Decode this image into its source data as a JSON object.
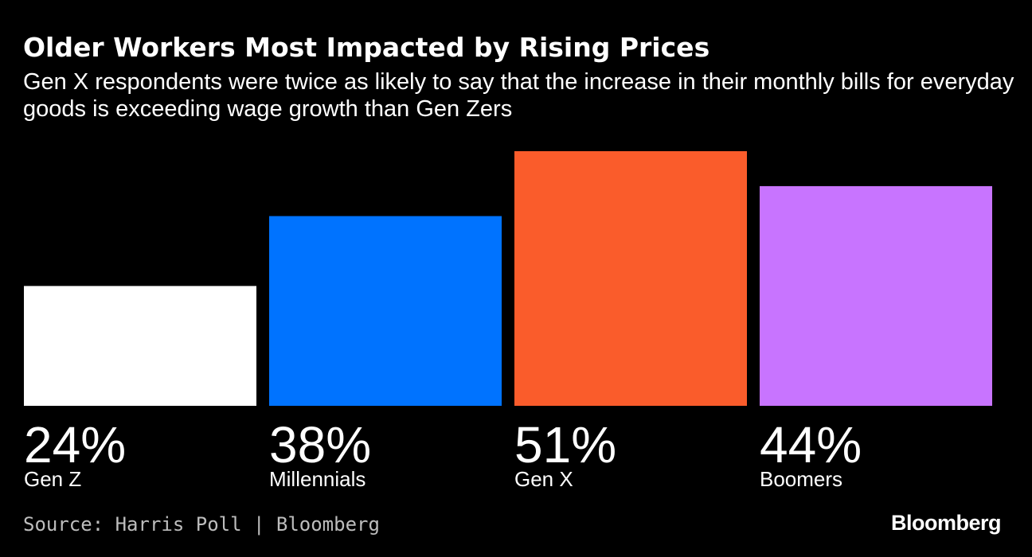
{
  "chart_data": {
    "type": "bar",
    "title": "Older Workers Most Impacted by Rising Prices",
    "subtitle": "Gen X respondents were twice as likely to say that the increase in their monthly bills for everyday goods is exceeding wage growth than Gen Zers",
    "categories": [
      "Gen Z",
      "Millennials",
      "Gen X",
      "Boomers"
    ],
    "values": [
      24,
      38,
      51,
      44
    ],
    "value_labels": [
      "24%",
      "38%",
      "51%",
      "44%"
    ],
    "colors": [
      "#ffffff",
      "#0073ff",
      "#fa5c2b",
      "#c874ff"
    ],
    "ylim": [
      0,
      51
    ],
    "xlabel": "",
    "ylabel": "",
    "grid": false
  },
  "footer": {
    "source": "Source: Harris Poll | Bloomberg",
    "brand": "Bloomberg"
  }
}
